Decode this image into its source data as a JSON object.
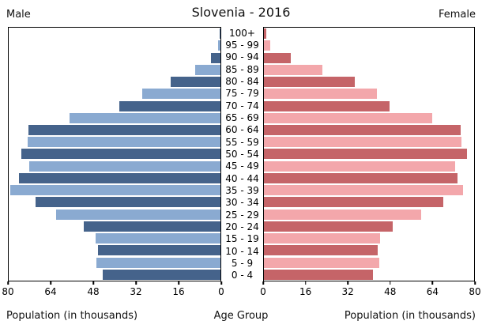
{
  "header": {
    "title": "Slovenia - 2016",
    "left_label": "Male",
    "right_label": "Female"
  },
  "footer": {
    "left_axis_label": "Population (in thousands)",
    "center_axis_label": "Age Group",
    "right_axis_label": "Population (in thousands)"
  },
  "colors": {
    "male_dark": "#45638B",
    "male_light": "#8AAAD1",
    "female_dark": "#C56468",
    "female_light": "#F3A7AB",
    "axis": "#000000"
  },
  "chart_data": {
    "type": "bar",
    "subtype": "population-pyramid",
    "title": "Slovenia - 2016",
    "categories": [
      "100+",
      "95 - 99",
      "90 - 94",
      "85 - 89",
      "80 - 84",
      "75 - 79",
      "70 - 74",
      "65 - 69",
      "60 - 64",
      "55 - 59",
      "50 - 54",
      "45 - 49",
      "40 - 44",
      "35 - 39",
      "30 - 34",
      "25 - 29",
      "20 - 24",
      "15 - 19",
      "10 - 14",
      "5 - 9",
      "0 - 4"
    ],
    "series": [
      {
        "name": "Male",
        "side": "left",
        "values": [
          0.3,
          1.0,
          3.5,
          9.6,
          18.8,
          29.5,
          38.2,
          57.0,
          72.4,
          72.9,
          75.3,
          72.1,
          76.1,
          79.5,
          69.9,
          62.2,
          51.5,
          47.1,
          46.4,
          46.8,
          44.6
        ]
      },
      {
        "name": "Female",
        "side": "right",
        "values": [
          0.8,
          2.3,
          10.3,
          22.3,
          34.7,
          43.1,
          47.9,
          64.0,
          74.9,
          75.1,
          77.4,
          72.9,
          73.6,
          75.7,
          68.2,
          59.7,
          49.0,
          44.3,
          43.4,
          44.0,
          41.6
        ]
      }
    ],
    "xlabel": "Population (in thousands)",
    "center_label": "Age Group",
    "ylabel_center": "Age Group",
    "unit": "thousands",
    "xlim": [
      0,
      80
    ],
    "ticks": {
      "male": [
        "80",
        "64",
        "48",
        "32",
        "16",
        "0"
      ],
      "female": [
        "0",
        "16",
        "32",
        "48",
        "64",
        "80"
      ]
    },
    "grid": false,
    "legend_position": "none"
  }
}
